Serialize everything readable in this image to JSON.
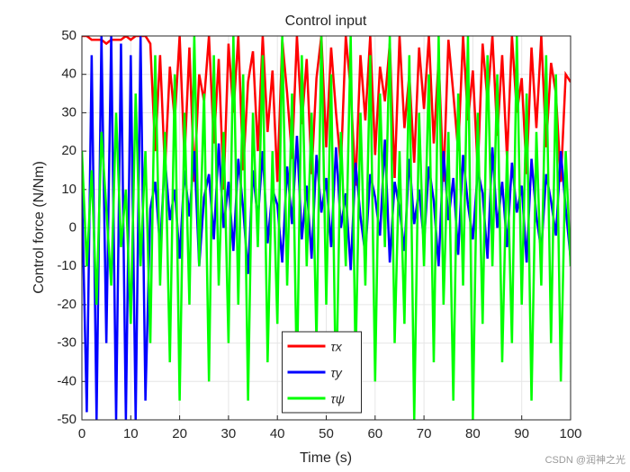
{
  "chart_data": {
    "type": "line",
    "title": "Control input",
    "x_label": "Time (s)",
    "y_label": "Control force (N/Nm)",
    "x": [
      0,
      1,
      2,
      3,
      4,
      5,
      6,
      7,
      8,
      9,
      10,
      11,
      12,
      13,
      14,
      15,
      16,
      17,
      18,
      19,
      20,
      21,
      22,
      23,
      24,
      25,
      26,
      27,
      28,
      29,
      30,
      31,
      32,
      33,
      34,
      35,
      36,
      37,
      38,
      39,
      40,
      41,
      42,
      43,
      44,
      45,
      46,
      47,
      48,
      49,
      50,
      51,
      52,
      53,
      54,
      55,
      56,
      57,
      58,
      59,
      60,
      61,
      62,
      63,
      64,
      65,
      66,
      67,
      68,
      69,
      70,
      71,
      72,
      73,
      74,
      75,
      76,
      77,
      78,
      79,
      80,
      81,
      82,
      83,
      84,
      85,
      86,
      87,
      88,
      89,
      90,
      91,
      92,
      93,
      94,
      95,
      96,
      97,
      98,
      99,
      100
    ],
    "series": [
      {
        "name": "τx",
        "color": "#ff0000",
        "values": [
          50,
          50,
          49,
          49,
          49,
          48,
          49,
          49,
          49,
          50,
          49,
          50,
          50,
          50,
          48,
          20,
          45,
          15,
          42,
          28,
          50,
          18,
          47,
          12,
          40,
          33,
          50,
          22,
          44,
          10,
          48,
          30,
          50,
          15,
          38,
          46,
          20,
          50,
          25,
          41,
          12,
          49,
          35,
          18,
          50,
          27,
          44,
          14,
          39,
          50,
          21,
          47,
          30,
          16,
          50,
          36,
          11,
          45,
          28,
          50,
          19,
          42,
          33,
          48,
          13,
          50,
          26,
          40,
          17,
          47,
          31,
          50,
          22,
          44,
          12,
          49,
          35,
          20,
          50,
          28,
          41,
          15,
          48,
          33,
          50,
          24,
          45,
          18,
          50,
          30,
          39,
          14,
          47,
          26,
          50,
          21,
          43,
          35,
          12,
          40,
          38
        ]
      },
      {
        "name": "τy",
        "color": "#0000ff",
        "values": [
          10,
          -48,
          45,
          -50,
          50,
          -30,
          50,
          -50,
          48,
          -50,
          45,
          -50,
          50,
          -45,
          5,
          12,
          -5,
          18,
          2,
          10,
          -8,
          15,
          3,
          20,
          -10,
          8,
          14,
          -3,
          22,
          0,
          12,
          -6,
          18,
          5,
          -12,
          15,
          2,
          20,
          -4,
          10,
          6,
          -9,
          16,
          1,
          24,
          -3,
          11,
          -8,
          19,
          4,
          13,
          -5,
          21,
          0,
          9,
          -11,
          17,
          3,
          -7,
          14,
          8,
          -2,
          23,
          -9,
          12,
          5,
          -6,
          18,
          1,
          10,
          -4,
          16,
          7,
          -10,
          20,
          2,
          13,
          -7,
          19,
          6,
          -3,
          15,
          9,
          -8,
          21,
          0,
          12,
          -5,
          17,
          4,
          11,
          -9,
          18,
          3,
          -6,
          14,
          7,
          -2,
          20,
          5,
          -8
        ]
      },
      {
        "name": "τψ",
        "color": "#00ff00",
        "values": [
          20,
          -10,
          15,
          -20,
          25,
          5,
          -15,
          30,
          -5,
          10,
          -25,
          35,
          -10,
          20,
          -30,
          45,
          -15,
          25,
          -35,
          40,
          -45,
          30,
          -20,
          50,
          -10,
          35,
          -40,
          45,
          -15,
          25,
          -30,
          50,
          -20,
          40,
          -45,
          30,
          -5,
          45,
          -35,
          20,
          -25,
          50,
          -15,
          35,
          -40,
          45,
          -10,
          30,
          -30,
          50,
          -20,
          40,
          -45,
          25,
          -10,
          50,
          -35,
          30,
          -15,
          45,
          -40,
          35,
          -5,
          50,
          -30,
          20,
          -25,
          45,
          -50,
          30,
          -10,
          40,
          -35,
          50,
          -20,
          25,
          -45,
          35,
          -15,
          50,
          -50,
          30,
          -25,
          45,
          -10,
          40,
          -35,
          20,
          -30,
          50,
          -20,
          35,
          -45,
          25,
          -15,
          45,
          -30,
          40,
          -40,
          20,
          -10
        ]
      }
    ],
    "xlim": [
      0,
      100
    ],
    "xticks": [
      0,
      10,
      20,
      30,
      40,
      50,
      60,
      70,
      80,
      90,
      100
    ],
    "ylim": [
      -50,
      50
    ],
    "yticks": [
      -50,
      -40,
      -30,
      -20,
      -10,
      0,
      10,
      20,
      30,
      40,
      50
    ],
    "grid": true,
    "legend": "south",
    "watermark": "CSDN @润神之光"
  }
}
